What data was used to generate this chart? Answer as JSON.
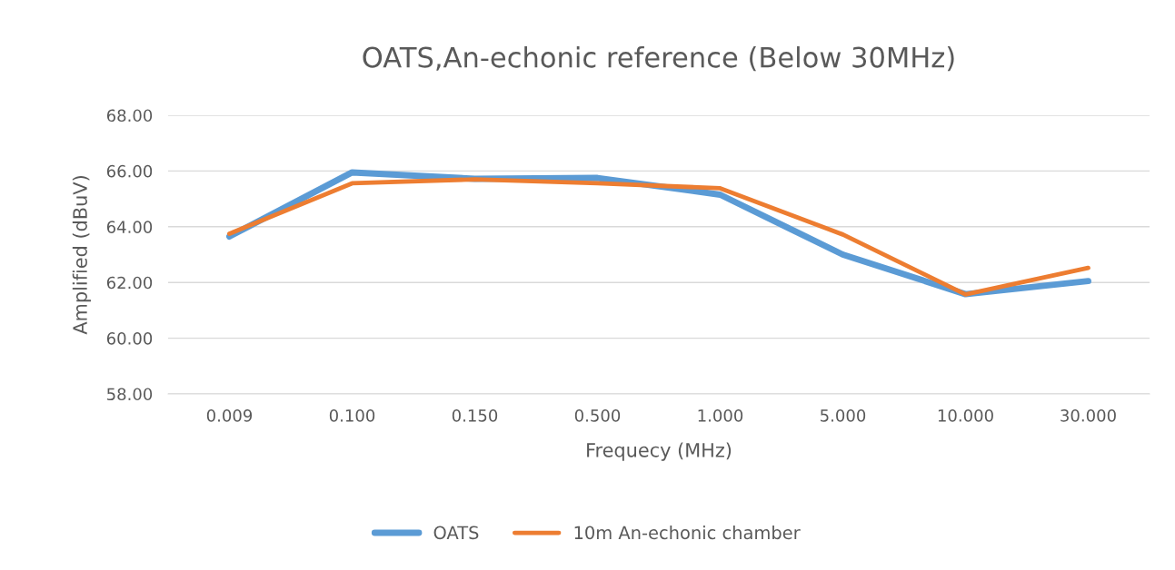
{
  "chart_data": {
    "type": "line",
    "title": "OATS,An-echonic reference (Below 30MHz)",
    "xlabel": "Frequecy (MHz)",
    "ylabel": "Amplified (dBuV)",
    "categories": [
      "0.009",
      "0.100",
      "0.150",
      "0.500",
      "1.000",
      "5.000",
      "10.000",
      "30.000"
    ],
    "series": [
      {
        "name": "OATS",
        "color": "#5b9bd5",
        "values": [
          63.65,
          65.95,
          65.72,
          65.75,
          65.15,
          63.0,
          61.58,
          62.05
        ]
      },
      {
        "name": "10m An-echonic chamber",
        "color": "#ed7d31",
        "values": [
          63.75,
          65.56,
          65.7,
          65.56,
          65.38,
          63.72,
          61.57,
          62.52
        ]
      }
    ],
    "ylim": [
      58,
      68
    ],
    "yticks": [
      {
        "value": 58,
        "label": "58.00"
      },
      {
        "value": 60,
        "label": "60.00"
      },
      {
        "value": 62,
        "label": "62.00"
      },
      {
        "value": 64,
        "label": "64.00"
      },
      {
        "value": 66,
        "label": "66.00"
      },
      {
        "value": 68,
        "label": "68.00"
      }
    ],
    "grid": "y",
    "legend": "bottom",
    "marker": "none",
    "line_style": "solid"
  }
}
